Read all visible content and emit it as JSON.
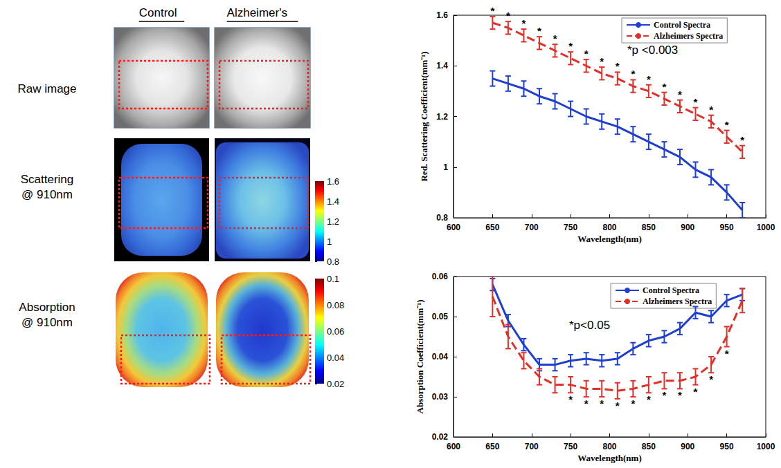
{
  "panels": {
    "columns": [
      "Control",
      "Alzheimer's"
    ],
    "rows": [
      {
        "label": [
          "Raw image"
        ]
      },
      {
        "label": [
          "Scattering",
          "@ 910nm"
        ],
        "colorbar": {
          "range": [
            0.8,
            1.6
          ],
          "ticks": [
            0.8,
            1,
            1.2,
            1.4,
            1.6
          ]
        }
      },
      {
        "label": [
          "Absorption",
          "@ 910nm"
        ],
        "colorbar": {
          "range": [
            0.02,
            0.1
          ],
          "ticks": [
            0.02,
            0.04,
            0.06,
            0.08,
            0.1
          ]
        }
      }
    ]
  },
  "chart_data": [
    {
      "type": "line",
      "xlabel": "Wavelength(nm)",
      "ylabel": "Red. Scattering Coefficient(mm⁻¹)",
      "x": [
        650,
        670,
        690,
        710,
        730,
        750,
        770,
        790,
        810,
        830,
        850,
        870,
        890,
        910,
        930,
        950,
        970
      ],
      "xlim": [
        600,
        1000
      ],
      "xticks": [
        600,
        650,
        700,
        750,
        800,
        850,
        900,
        950,
        1000
      ],
      "ylim": [
        0.8,
        1.6
      ],
      "yticks": [
        0.8,
        1,
        1.2,
        1.4,
        1.6
      ],
      "grid": false,
      "legend": "upper right",
      "annotation": "*p <0.003",
      "significance_mark": "*",
      "series": [
        {
          "name": "Control Spectra",
          "color": "#1f3fd0",
          "line_style": "solid",
          "values": [
            1.35,
            1.33,
            1.31,
            1.28,
            1.26,
            1.23,
            1.2,
            1.18,
            1.16,
            1.13,
            1.1,
            1.07,
            1.04,
            0.99,
            0.96,
            0.9,
            0.83
          ],
          "errors": [
            0.03,
            0.03,
            0.03,
            0.03,
            0.03,
            0.03,
            0.03,
            0.03,
            0.03,
            0.03,
            0.03,
            0.03,
            0.03,
            0.03,
            0.03,
            0.03,
            0.03
          ],
          "significant": []
        },
        {
          "name": "Alzheimers Spectra",
          "color": "#e0302a",
          "line_style": "dashed",
          "values": [
            1.57,
            1.55,
            1.52,
            1.49,
            1.46,
            1.43,
            1.4,
            1.37,
            1.35,
            1.32,
            1.3,
            1.27,
            1.24,
            1.21,
            1.18,
            1.12,
            1.06
          ],
          "errors": [
            0.025,
            0.025,
            0.025,
            0.025,
            0.025,
            0.025,
            0.025,
            0.025,
            0.025,
            0.025,
            0.025,
            0.025,
            0.025,
            0.025,
            0.025,
            0.025,
            0.025
          ],
          "significant": [
            650,
            670,
            690,
            710,
            730,
            750,
            770,
            790,
            810,
            830,
            850,
            870,
            890,
            910,
            930,
            950,
            970
          ]
        }
      ]
    },
    {
      "type": "line",
      "xlabel": "Wavelength(nm)",
      "ylabel": "Absorption Coefficient(mm⁻¹)",
      "x": [
        650,
        670,
        690,
        710,
        730,
        750,
        770,
        790,
        810,
        830,
        850,
        870,
        890,
        910,
        930,
        950,
        970
      ],
      "xlim": [
        600,
        1000
      ],
      "xticks": [
        600,
        650,
        700,
        750,
        800,
        850,
        900,
        950,
        1000
      ],
      "ylim": [
        0.02,
        0.06
      ],
      "yticks": [
        0.02,
        0.03,
        0.04,
        0.05,
        0.06
      ],
      "grid": false,
      "legend": "upper right",
      "annotation": "*p<0.05",
      "significance_mark": "*",
      "series": [
        {
          "name": "Control Spectra",
          "color": "#1f3fd0",
          "line_style": "solid",
          "values": [
            0.058,
            0.049,
            0.043,
            0.038,
            0.038,
            0.039,
            0.0395,
            0.039,
            0.0395,
            0.042,
            0.044,
            0.045,
            0.047,
            0.051,
            0.05,
            0.054,
            0.0555
          ],
          "errors": [
            0.0015,
            0.0015,
            0.0015,
            0.0015,
            0.0015,
            0.0015,
            0.0015,
            0.0015,
            0.0015,
            0.0015,
            0.0015,
            0.0015,
            0.0015,
            0.0015,
            0.0015,
            0.0015,
            0.0015
          ],
          "significant": []
        },
        {
          "name": "Alzheimers Spectra",
          "color": "#e0302a",
          "line_style": "dashed",
          "values": [
            0.055,
            0.045,
            0.039,
            0.035,
            0.033,
            0.033,
            0.032,
            0.032,
            0.0315,
            0.032,
            0.033,
            0.034,
            0.034,
            0.035,
            0.038,
            0.045,
            0.054
          ],
          "errors": [
            0.005,
            0.003,
            0.002,
            0.002,
            0.002,
            0.002,
            0.002,
            0.002,
            0.002,
            0.002,
            0.002,
            0.002,
            0.002,
            0.002,
            0.002,
            0.0025,
            0.003
          ],
          "significant": [
            750,
            770,
            790,
            810,
            830,
            850,
            870,
            890,
            910,
            930,
            950
          ]
        }
      ]
    }
  ]
}
